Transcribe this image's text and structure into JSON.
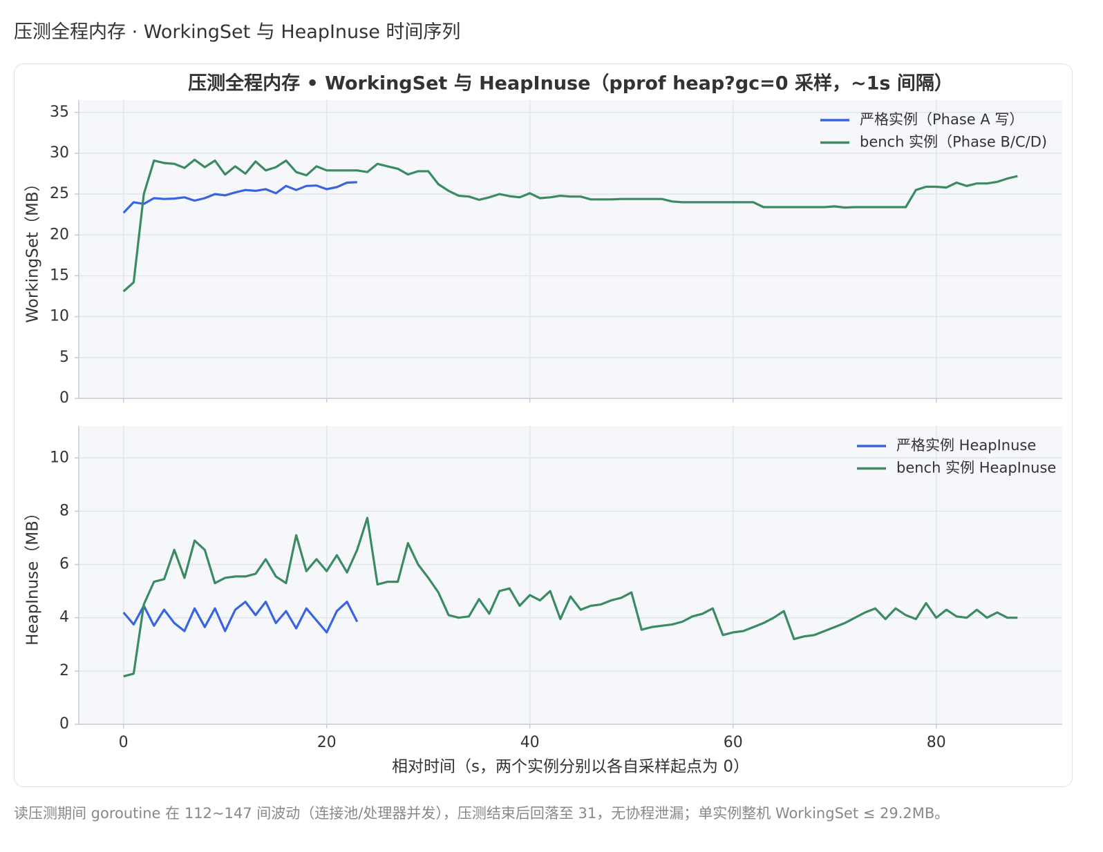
{
  "header": {
    "title": "压测全程内存 · WorkingSet 与 HeapInuse 时间序列"
  },
  "chart_data": [
    {
      "type": "line",
      "title": "压测全程内存 • WorkingSet 与 HeapInuse（pprof heap?gc=0 采样，~1s 间隔）",
      "y_label": "WorkingSet（MB）",
      "x": [
        0,
        1,
        2,
        3,
        4,
        5,
        6,
        7,
        8,
        9,
        10,
        11,
        12,
        13,
        14,
        15,
        16,
        17,
        18,
        19,
        20,
        21,
        22,
        23,
        24,
        25,
        26,
        27,
        28,
        29,
        30,
        31,
        32,
        33,
        34,
        35,
        36,
        37,
        38,
        39,
        40,
        41,
        42,
        43,
        44,
        45,
        46,
        47,
        48,
        49,
        50,
        51,
        52,
        53,
        54,
        55,
        56,
        57,
        58,
        59,
        60,
        61,
        62,
        63,
        64,
        65,
        66,
        67,
        68,
        69,
        70,
        71,
        72,
        73,
        74,
        75,
        76,
        77,
        78,
        79,
        80,
        81,
        82,
        83,
        84,
        85,
        86,
        87,
        88
      ],
      "xlim": [
        -4.4,
        92.4
      ],
      "xticks": [
        0,
        20,
        40,
        60,
        80
      ],
      "ylim": [
        0,
        36.5
      ],
      "yticks": [
        0,
        5,
        10,
        15,
        20,
        25,
        30,
        35
      ],
      "grid": true,
      "legend": "upper right",
      "series": [
        {
          "name": "严格实例（Phase A 写）",
          "color": "#3a63e0",
          "x": [
            0,
            1,
            2,
            3,
            4,
            5,
            6,
            7,
            8,
            9,
            10,
            11,
            12,
            13,
            14,
            15,
            16,
            17,
            18,
            19,
            20,
            21,
            22,
            23
          ],
          "values": [
            22.7,
            24.0,
            23.8,
            24.5,
            24.4,
            24.45,
            24.6,
            24.2,
            24.5,
            25.0,
            24.85,
            25.2,
            25.5,
            25.4,
            25.6,
            25.1,
            26.0,
            25.5,
            26.0,
            26.05,
            25.6,
            25.85,
            26.4,
            26.45
          ]
        },
        {
          "name": "bench 实例（Phase B/C/D)",
          "color": "#3a8a62",
          "values": [
            13.1,
            14.2,
            25,
            29.1,
            28.8,
            28.7,
            28.2,
            29.2,
            28.3,
            29.1,
            27.4,
            28.4,
            27.5,
            29.0,
            27.9,
            28.3,
            29.1,
            27.7,
            27.3,
            28.4,
            27.9,
            27.9,
            27.9,
            27.9,
            27.7,
            28.7,
            28.4,
            28.1,
            27.4,
            27.8,
            27.8,
            26.2,
            25.4,
            24.8,
            24.7,
            24.3,
            24.6,
            25.0,
            24.75,
            24.6,
            25.1,
            24.5,
            24.6,
            24.8,
            24.7,
            24.7,
            24.35,
            24.35,
            24.35,
            24.4,
            24.4,
            24.4,
            24.4,
            24.4,
            24.1,
            24.0,
            24.0,
            24.0,
            24.0,
            24.0,
            24.0,
            24.0,
            24.0,
            23.4,
            23.4,
            23.4,
            23.4,
            23.4,
            23.4,
            23.4,
            23.5,
            23.35,
            23.4,
            23.4,
            23.4,
            23.4,
            23.4,
            23.4,
            25.5,
            25.9,
            25.9,
            25.8,
            26.4,
            26.0,
            26.3,
            26.3,
            26.5,
            26.9,
            27.2
          ]
        }
      ]
    },
    {
      "type": "line",
      "y_label": "HeapInuse（MB）",
      "x_label": "相对时间（s，两个实例分别以各自采样起点为 0）",
      "x": [
        0,
        1,
        2,
        3,
        4,
        5,
        6,
        7,
        8,
        9,
        10,
        11,
        12,
        13,
        14,
        15,
        16,
        17,
        18,
        19,
        20,
        21,
        22,
        23,
        24,
        25,
        26,
        27,
        28,
        29,
        30,
        31,
        32,
        33,
        34,
        35,
        36,
        37,
        38,
        39,
        40,
        41,
        42,
        43,
        44,
        45,
        46,
        47,
        48,
        49,
        50,
        51,
        52,
        53,
        54,
        55,
        56,
        57,
        58,
        59,
        60,
        61,
        62,
        63,
        64,
        65,
        66,
        67,
        68,
        69,
        70,
        71,
        72,
        73,
        74,
        75,
        76,
        77,
        78,
        79,
        80,
        81,
        82,
        83,
        84,
        85,
        86,
        87,
        88
      ],
      "xlim": [
        -4.4,
        92.4
      ],
      "xticks": [
        0,
        20,
        40,
        60,
        80
      ],
      "ylim": [
        0,
        11.2
      ],
      "yticks": [
        0,
        2,
        4,
        6,
        8,
        10
      ],
      "grid": true,
      "legend": "upper right",
      "series": [
        {
          "name": "严格实例 HeapInuse",
          "color": "#3a63e0",
          "x": [
            0,
            1,
            2,
            3,
            4,
            5,
            6,
            7,
            8,
            9,
            10,
            11,
            12,
            13,
            14,
            15,
            16,
            17,
            18,
            19,
            20,
            21,
            22,
            23
          ],
          "values": [
            4.2,
            3.75,
            4.45,
            3.7,
            4.3,
            3.8,
            3.5,
            4.35,
            3.65,
            4.35,
            3.5,
            4.3,
            4.6,
            4.1,
            4.6,
            3.8,
            4.25,
            3.6,
            4.35,
            3.9,
            3.45,
            4.25,
            4.6,
            3.85
          ]
        },
        {
          "name": "bench 实例 HeapInuse",
          "color": "#3a8a62",
          "values": [
            1.8,
            1.9,
            4.5,
            5.35,
            5.45,
            6.55,
            5.5,
            6.9,
            6.55,
            5.3,
            5.5,
            5.55,
            5.55,
            5.65,
            6.2,
            5.55,
            5.3,
            7.1,
            5.75,
            6.2,
            5.75,
            6.35,
            5.7,
            6.55,
            7.75,
            5.25,
            5.35,
            5.35,
            6.8,
            6.0,
            5.5,
            4.95,
            4.1,
            4.0,
            4.05,
            4.7,
            4.15,
            5.0,
            5.1,
            4.45,
            4.85,
            4.65,
            5.0,
            3.95,
            4.8,
            4.3,
            4.45,
            4.5,
            4.65,
            4.75,
            4.95,
            3.55,
            3.65,
            3.7,
            3.75,
            3.85,
            4.05,
            4.15,
            4.35,
            3.35,
            3.45,
            3.5,
            3.65,
            3.8,
            4.0,
            4.25,
            3.2,
            3.3,
            3.35,
            3.5,
            3.65,
            3.8,
            4.0,
            4.2,
            4.35,
            3.95,
            4.35,
            4.1,
            3.95,
            4.55,
            4.0,
            4.3,
            4.05,
            4.0,
            4.3,
            4.0,
            4.2,
            4.0,
            4.0
          ]
        }
      ]
    }
  ],
  "footer": {
    "note": "读压测期间 goroutine 在 112~147 间波动（连接池/处理器并发），压测结束后回落至 31，无协程泄漏；单实例整机 WorkingSet ≤ 29.2MB。"
  }
}
